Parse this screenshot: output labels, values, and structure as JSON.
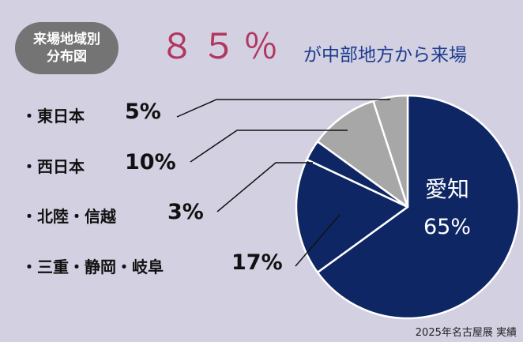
{
  "badge": {
    "line1": "来場地域別",
    "line2": "分布図"
  },
  "headline": {
    "percent": "８５％",
    "tail": "が中部地方から来場"
  },
  "labels": [
    {
      "name": "・東日本",
      "pct": "5%"
    },
    {
      "name": "・西日本",
      "pct": "10%"
    },
    {
      "name": "・北陸・信越",
      "pct": "3%"
    },
    {
      "name": "・三重・静岡・岐阜",
      "pct": "17%"
    }
  ],
  "slice_labels": {
    "aichi_name": "愛知",
    "aichi_pct": "65%"
  },
  "footer": "2025年名古屋展 実績",
  "colors": {
    "navy": "#0e2663",
    "gray": "#a7a7a7",
    "accent": "#b2365f",
    "blue_text": "#1c3c8e",
    "background": "#d3d0e2"
  },
  "chart_data": {
    "type": "pie",
    "categories": [
      "愛知",
      "三重・静岡・岐阜",
      "北陸・信越",
      "西日本",
      "東日本"
    ],
    "values": [
      65,
      17,
      3,
      10,
      5
    ],
    "title": "",
    "start": "12 o'clock, clockwise"
  }
}
